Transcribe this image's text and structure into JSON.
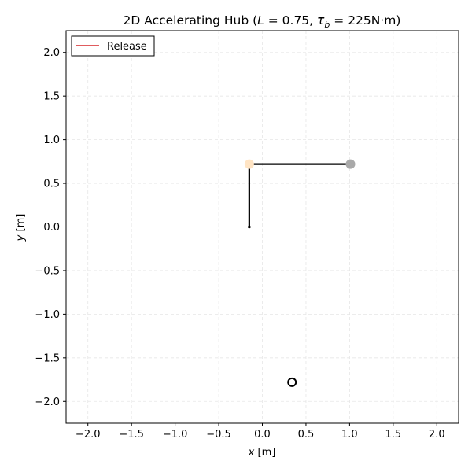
{
  "chart_data": {
    "type": "scatter",
    "title_main": "2D Accelerating Hub (",
    "title_L": "L",
    "title_eq1": " = 0.75, ",
    "title_tau": "τ",
    "title_sub": "b",
    "title_eq2": " = 225N·m)",
    "xlabel_var": "x",
    "xlabel_unit": " [m]",
    "ylabel_var": "y",
    "ylabel_unit": " [m]",
    "xlim": [
      -2.25,
      2.25
    ],
    "ylim": [
      -2.25,
      2.25
    ],
    "xticks": [
      -2.0,
      -1.5,
      -1.0,
      -0.5,
      0.0,
      0.5,
      1.0,
      1.5,
      2.0
    ],
    "yticks": [
      -2.0,
      -1.5,
      -1.0,
      -0.5,
      0.0,
      0.5,
      1.0,
      1.5,
      2.0
    ],
    "xtick_labels": [
      "−2.0",
      "−1.5",
      "−1.0",
      "−0.5",
      "0.0",
      "0.5",
      "1.0",
      "1.5",
      "2.0"
    ],
    "ytick_labels": [
      "−2.0",
      "−1.5",
      "−1.0",
      "−0.5",
      "0.0",
      "0.5",
      "1.0",
      "1.5",
      "2.0"
    ],
    "grid": true,
    "legend": {
      "placement": "top-left",
      "entries": [
        {
          "label": "Release",
          "color": "#d62728"
        }
      ]
    },
    "hub": {
      "x": -0.15,
      "y": 0.0
    },
    "joint": {
      "x": -0.15,
      "y": 0.72,
      "color": "#ffe4c4"
    },
    "tip": {
      "x": 1.01,
      "y": 0.72,
      "color": "#a9a9a9"
    },
    "target": {
      "x": 0.34,
      "y": -1.78
    },
    "link_color": "#000000"
  }
}
